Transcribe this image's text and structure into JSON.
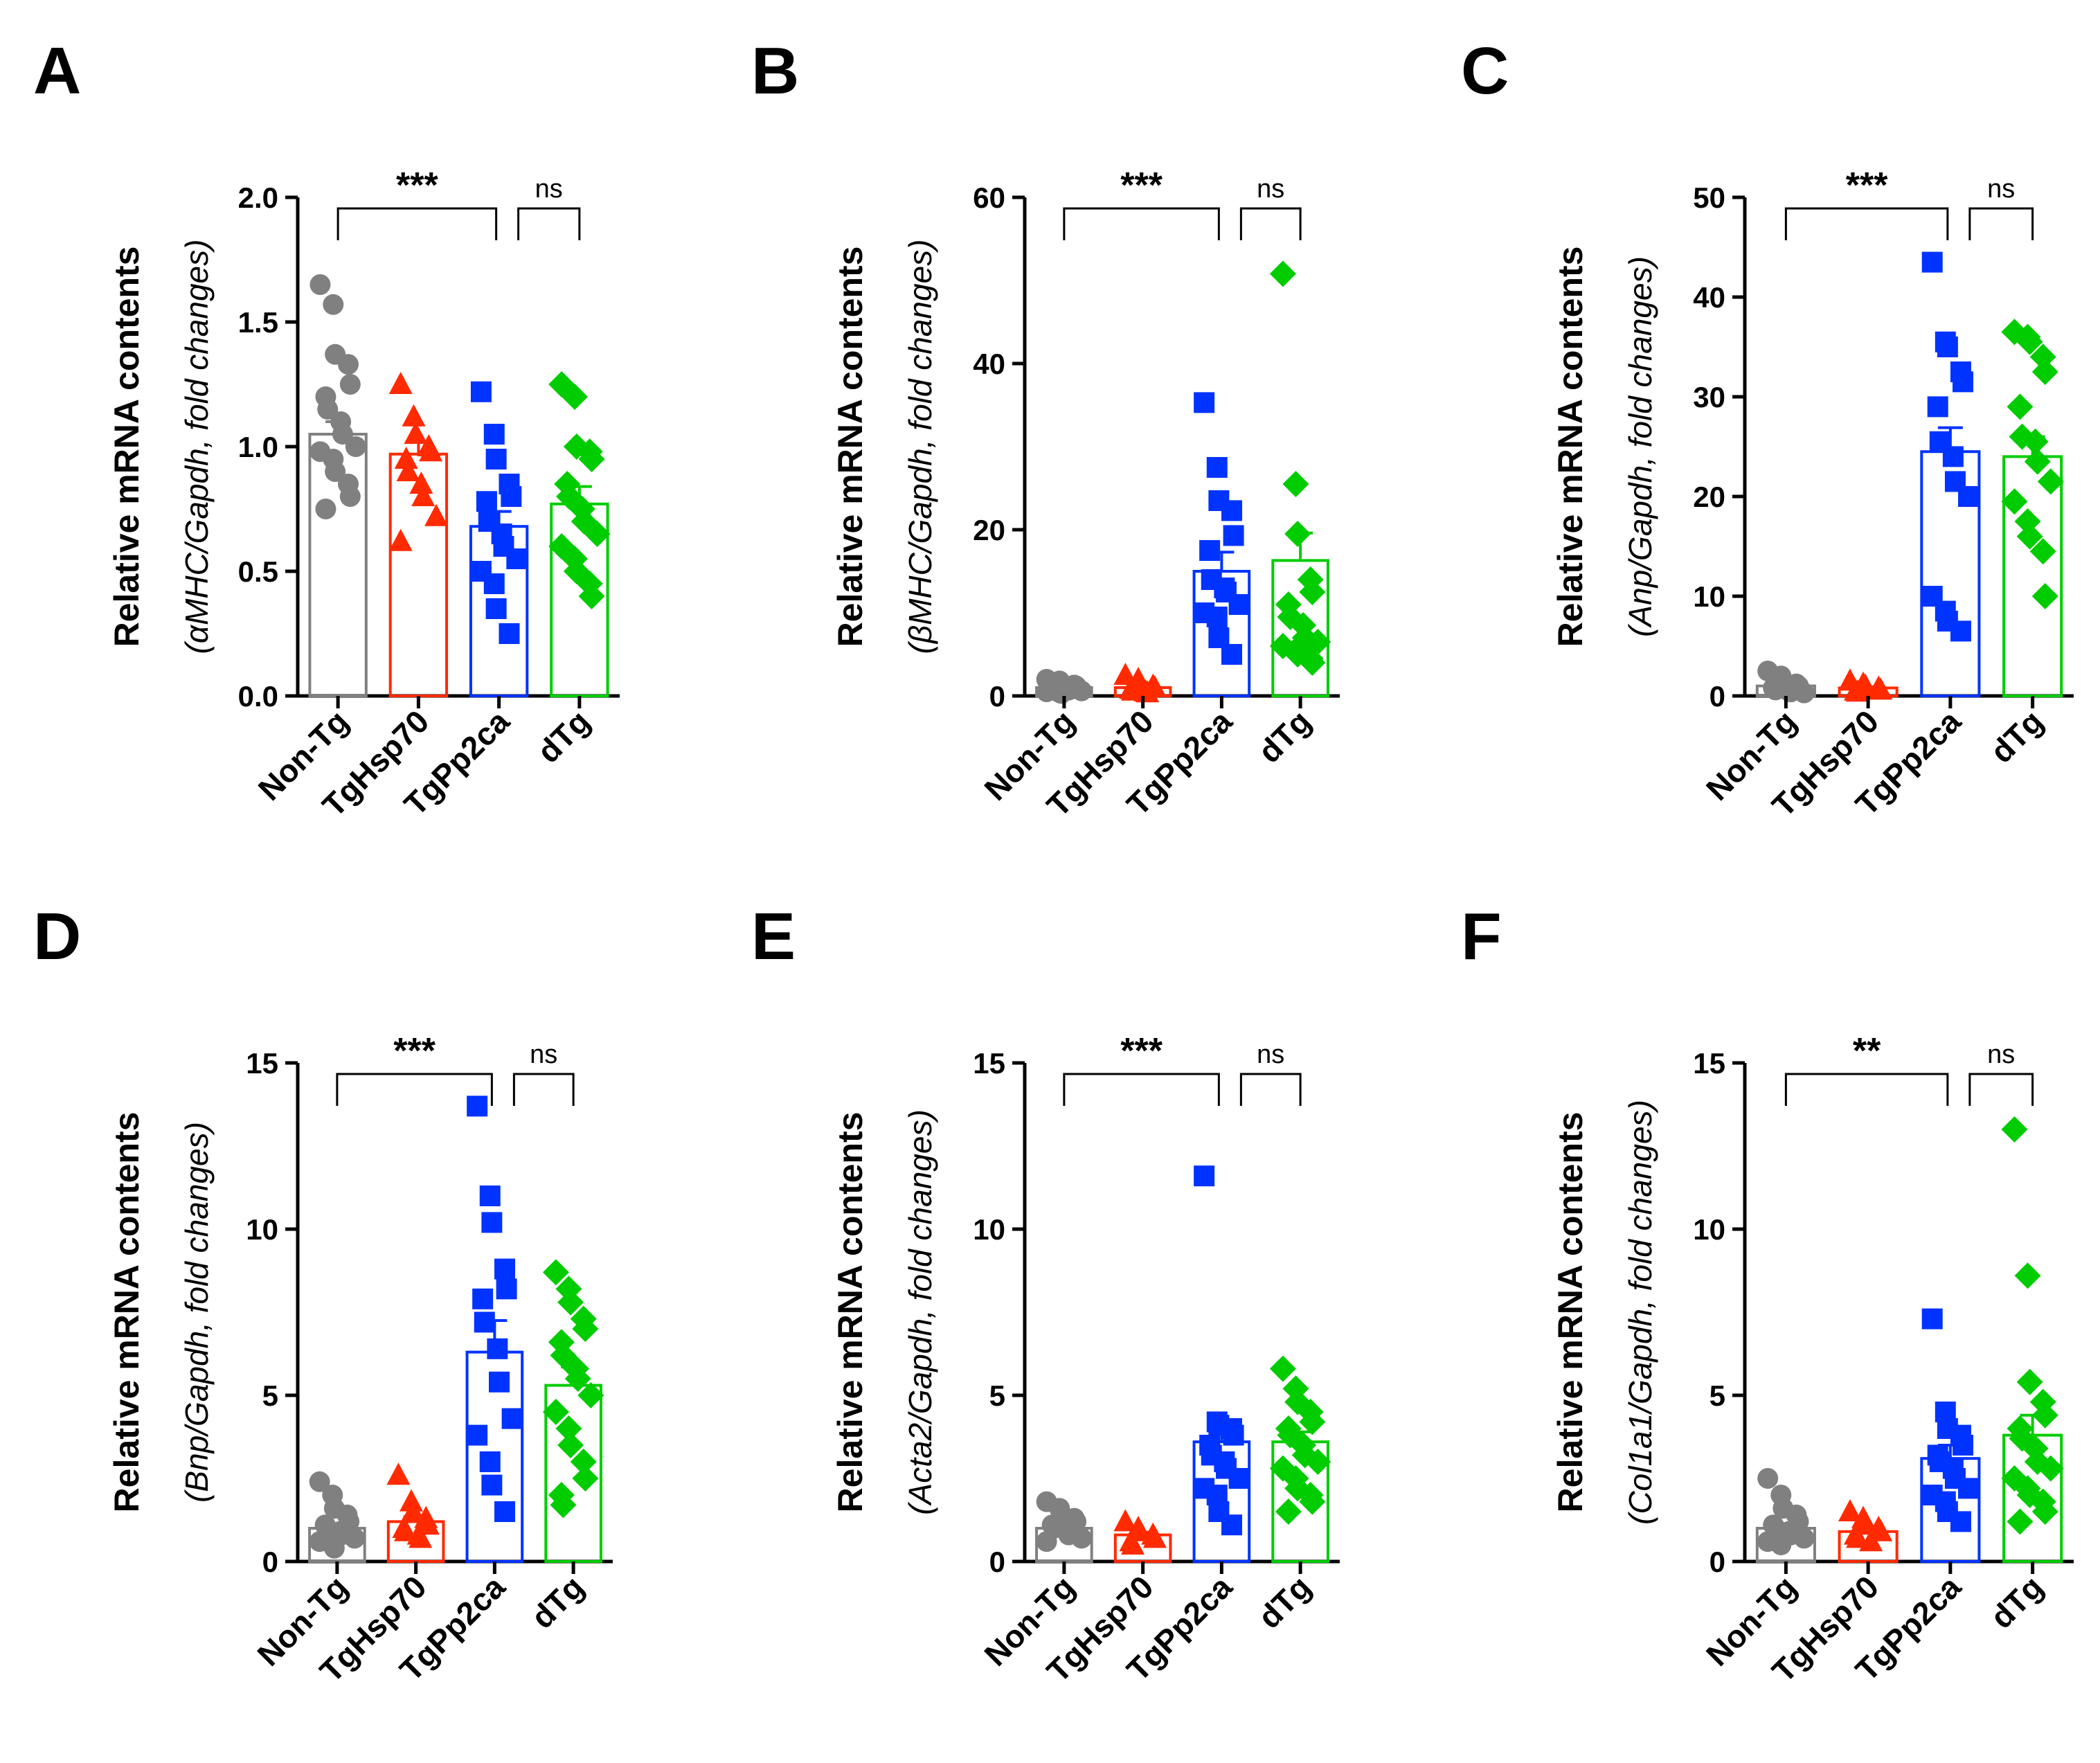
{
  "colors": {
    "Non-Tg": "#808080",
    "TgHsp70": "#ff2a00",
    "TgPp2ca": "#0033ff",
    "dTg": "#00cc00",
    "axis": "#000000"
  },
  "marker_shapes": {
    "Non-Tg": "circle",
    "TgHsp70": "triangle",
    "TgPp2ca": "square",
    "dTg": "diamond"
  },
  "chart_data": [
    {
      "panel": "A",
      "type": "bar",
      "ylabel_main": "Relative mRNA contents",
      "ylabel_sub_pre": "(αMHC/Gapdh, fold changes)",
      "ylim": [
        0,
        2.0
      ],
      "yticks": [
        "0.0",
        "0.5",
        "1.0",
        "1.5",
        "2.0"
      ],
      "categories": [
        "Non-Tg",
        "TgHsp70",
        "TgPp2ca",
        "dTg"
      ],
      "means": [
        1.05,
        0.97,
        0.68,
        0.77
      ],
      "sem": [
        0.05,
        0.05,
        0.06,
        0.07
      ],
      "points": [
        [
          1.65,
          1.57,
          1.37,
          1.33,
          1.25,
          1.2,
          1.15,
          1.1,
          1.05,
          1.0,
          0.98,
          0.95,
          0.9,
          0.85,
          0.8,
          0.75
        ],
        [
          1.25,
          1.12,
          1.05,
          1.0,
          0.98,
          0.95,
          0.9,
          0.85,
          0.8,
          0.72,
          0.62
        ],
        [
          1.22,
          1.05,
          0.95,
          0.85,
          0.8,
          0.78,
          0.7,
          0.65,
          0.6,
          0.55,
          0.5,
          0.45,
          0.35,
          0.25
        ],
        [
          1.25,
          1.2,
          1.0,
          0.98,
          0.95,
          0.85,
          0.8,
          0.75,
          0.7,
          0.65,
          0.6,
          0.55,
          0.5,
          0.45,
          0.4
        ]
      ],
      "significance": [
        {
          "from": 0,
          "to": 2,
          "label": "***"
        },
        {
          "from": 2,
          "to": 3,
          "label": "ns"
        }
      ]
    },
    {
      "panel": "B",
      "type": "bar",
      "ylabel_main": "Relative mRNA contents",
      "ylabel_sub_pre": "(βMHC/Gapdh, fold changes)",
      "ylim": [
        0,
        60
      ],
      "yticks": [
        "0",
        "20",
        "40",
        "60"
      ],
      "categories": [
        "Non-Tg",
        "TgHsp70",
        "TgPp2ca",
        "dTg"
      ],
      "means": [
        1.0,
        1.0,
        15.0,
        16.3
      ],
      "sem": [
        0.15,
        0.15,
        2.3,
        3.3
      ],
      "points": [
        [
          2.0,
          1.8,
          1.5,
          1.3,
          1.2,
          1.0,
          0.9,
          0.8,
          0.7,
          0.6,
          0.5,
          0.4,
          0.3
        ],
        [
          2.5,
          2.0,
          1.5,
          1.2,
          1.0,
          0.8,
          0.6,
          0.5,
          0.4
        ],
        [
          35.3,
          27.5,
          23.5,
          22.3,
          19.3,
          17.5,
          14.0,
          13.0,
          12.5,
          11.0,
          10.0,
          9.5,
          7.0,
          5.0
        ],
        [
          50.8,
          25.5,
          19.5,
          14.0,
          12.5,
          11.0,
          9.5,
          8.5,
          7.0,
          6.5,
          6.0,
          5.5,
          5.0,
          4.5,
          4.0
        ]
      ],
      "significance": [
        {
          "from": 0,
          "to": 2,
          "label": "***"
        },
        {
          "from": 2,
          "to": 3,
          "label": "ns"
        }
      ]
    },
    {
      "panel": "C",
      "type": "bar",
      "ylabel_main": "Relative mRNA contents",
      "ylabel_sub_pre": "(Anp/Gapdh, fold changes)",
      "ylim": [
        0,
        50
      ],
      "yticks": [
        "0",
        "10",
        "20",
        "30",
        "40",
        "50"
      ],
      "categories": [
        "Non-Tg",
        "TgHsp70",
        "TgPp2ca",
        "dTg"
      ],
      "means": [
        1.0,
        0.8,
        24.5,
        24.0
      ],
      "sem": [
        0.15,
        0.1,
        2.4,
        2.0
      ],
      "points": [
        [
          2.5,
          2.0,
          1.5,
          1.2,
          1.0,
          0.8,
          0.6,
          0.5,
          0.4,
          0.3
        ],
        [
          1.5,
          1.2,
          1.0,
          0.8,
          0.6,
          0.5,
          0.4
        ],
        [
          43.5,
          35.5,
          35.0,
          32.5,
          31.5,
          29.0,
          25.5,
          24.0,
          21.5,
          20.0,
          10.0,
          8.5,
          7.5,
          6.5
        ],
        [
          36.5,
          36.0,
          35.5,
          34.0,
          32.5,
          29.0,
          26.0,
          25.5,
          23.5,
          21.5,
          19.5,
          17.5,
          16.0,
          14.5,
          10.0
        ]
      ],
      "significance": [
        {
          "from": 0,
          "to": 2,
          "label": "***"
        },
        {
          "from": 2,
          "to": 3,
          "label": "ns"
        }
      ]
    },
    {
      "panel": "D",
      "type": "bar",
      "ylabel_main": "Relative mRNA contents",
      "ylabel_sub_pre": "(Bnp/Gapdh, fold changes)",
      "ylim": [
        0,
        15
      ],
      "yticks": [
        "0",
        "5",
        "10",
        "15"
      ],
      "categories": [
        "Non-Tg",
        "TgHsp70",
        "TgPp2ca",
        "dTg"
      ],
      "means": [
        1.0,
        1.2,
        6.3,
        5.3
      ],
      "sem": [
        0.12,
        0.15,
        0.95,
        0.55
      ],
      "points": [
        [
          2.4,
          2.0,
          1.6,
          1.4,
          1.2,
          1.1,
          1.0,
          0.9,
          0.8,
          0.7,
          0.6,
          0.5,
          0.4
        ],
        [
          2.6,
          1.8,
          1.5,
          1.3,
          1.1,
          1.0,
          0.9,
          0.8,
          0.7
        ],
        [
          13.7,
          11.0,
          10.2,
          8.8,
          8.2,
          7.9,
          7.2,
          6.4,
          5.4,
          4.3,
          3.8,
          3.0,
          2.3,
          1.5
        ],
        [
          8.7,
          8.2,
          7.8,
          7.3,
          7.0,
          6.6,
          6.2,
          5.8,
          5.5,
          5.0,
          4.5,
          4.0,
          3.5,
          3.0,
          2.5,
          2.0,
          1.7
        ]
      ],
      "significance": [
        {
          "from": 0,
          "to": 2,
          "label": "***"
        },
        {
          "from": 2,
          "to": 3,
          "label": "ns"
        }
      ]
    },
    {
      "panel": "E",
      "type": "bar",
      "ylabel_main": "Relative mRNA contents",
      "ylabel_sub_pre": "(Acta2/Gapdh, fold changes)",
      "ylim": [
        0,
        15
      ],
      "yticks": [
        "0",
        "5",
        "10",
        "15"
      ],
      "categories": [
        "Non-Tg",
        "TgHsp70",
        "TgPp2ca",
        "dTg"
      ],
      "means": [
        1.0,
        0.8,
        3.6,
        3.6
      ],
      "sem": [
        0.1,
        0.08,
        0.6,
        0.3
      ],
      "points": [
        [
          1.8,
          1.6,
          1.4,
          1.3,
          1.2,
          1.1,
          1.0,
          0.9,
          0.8,
          0.7,
          0.6
        ],
        [
          1.2,
          1.0,
          0.9,
          0.8,
          0.7,
          0.6,
          0.5
        ],
        [
          11.6,
          4.2,
          4.1,
          4.0,
          3.8,
          3.5,
          3.2,
          3.0,
          2.8,
          2.5,
          2.2,
          2.0,
          1.5,
          1.1
        ],
        [
          5.8,
          5.2,
          4.8,
          4.5,
          4.2,
          4.0,
          3.8,
          3.5,
          3.2,
          3.0,
          2.8,
          2.5,
          2.2,
          2.0,
          1.8,
          1.5
        ]
      ],
      "significance": [
        {
          "from": 0,
          "to": 2,
          "label": "***"
        },
        {
          "from": 2,
          "to": 3,
          "label": "ns"
        }
      ]
    },
    {
      "panel": "F",
      "type": "bar",
      "ylabel_main": "Relative mRNA contents",
      "ylabel_sub_pre": "(Col1a1/Gapdh, fold changes)",
      "ylim": [
        0,
        15
      ],
      "yticks": [
        "0",
        "5",
        "10",
        "15"
      ],
      "categories": [
        "Non-Tg",
        "TgHsp70",
        "TgPp2ca",
        "dTg"
      ],
      "means": [
        1.0,
        0.9,
        3.1,
        3.8
      ],
      "sem": [
        0.12,
        0.1,
        0.4,
        0.6
      ],
      "points": [
        [
          2.5,
          2.0,
          1.6,
          1.4,
          1.2,
          1.1,
          1.0,
          0.9,
          0.8,
          0.7,
          0.6,
          0.5
        ],
        [
          1.5,
          1.3,
          1.1,
          1.0,
          0.9,
          0.8,
          0.7,
          0.6
        ],
        [
          7.3,
          4.5,
          4.0,
          3.8,
          3.5,
          3.2,
          3.0,
          2.8,
          2.5,
          2.2,
          2.0,
          1.8,
          1.5,
          1.2
        ],
        [
          13.0,
          8.6,
          5.4,
          4.8,
          4.4,
          4.0,
          3.7,
          3.4,
          3.0,
          2.8,
          2.5,
          2.2,
          2.0,
          1.8,
          1.5,
          1.2
        ]
      ],
      "significance": [
        {
          "from": 0,
          "to": 2,
          "label": "**"
        },
        {
          "from": 2,
          "to": 3,
          "label": "ns"
        }
      ]
    }
  ]
}
